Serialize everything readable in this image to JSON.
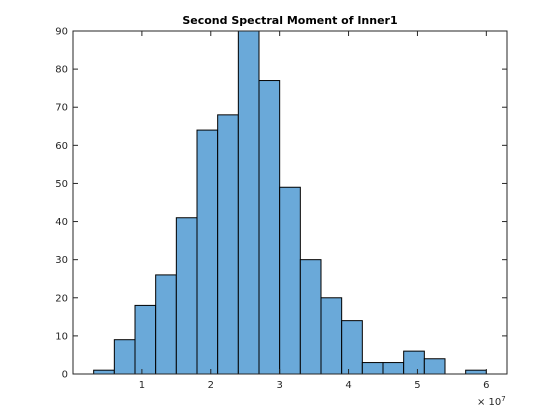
{
  "chart_data": {
    "type": "bar",
    "title": "Second Spectral Moment of Inner1",
    "xlabel": "",
    "ylabel": "",
    "bin_edges": [
      3,
      6,
      9,
      12,
      15,
      18,
      21,
      24,
      27,
      30,
      33,
      36,
      39,
      42,
      45,
      48,
      51,
      54,
      57,
      60
    ],
    "values": [
      1,
      9,
      18,
      26,
      41,
      64,
      68,
      90,
      77,
      49,
      30,
      20,
      14,
      3,
      3,
      6,
      4,
      0,
      1
    ],
    "x_scale_factor_label": "× 10^7",
    "x_scale_base": "× 10",
    "x_scale_exponent": "7",
    "xlim": [
      0,
      63
    ],
    "ylim": [
      0,
      90
    ],
    "x_ticks": [
      10,
      20,
      30,
      40,
      50,
      60
    ],
    "x_tick_labels": [
      "1",
      "2",
      "3",
      "4",
      "5",
      "6"
    ],
    "y_ticks": [
      0,
      10,
      20,
      30,
      40,
      50,
      60,
      70,
      80,
      90
    ],
    "y_tick_labels": [
      "0",
      "10",
      "20",
      "30",
      "40",
      "50",
      "60",
      "70",
      "80",
      "90"
    ],
    "grid": false,
    "bar_color": "#6aa9d9",
    "edge_color": "#000000"
  }
}
